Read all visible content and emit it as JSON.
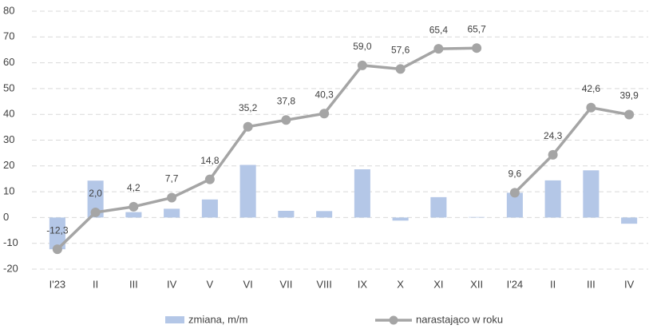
{
  "chart_data": {
    "type": "bar+line",
    "categories": [
      "I'23",
      "II",
      "III",
      "IV",
      "V",
      "VI",
      "VII",
      "VIII",
      "IX",
      "X",
      "XI",
      "XII",
      "I'24",
      "II",
      "III",
      "IV"
    ],
    "series": [
      {
        "name": "zmiana, m/m",
        "type": "bar",
        "color": "#b4c7e7",
        "values": [
          -12.3,
          14.3,
          2.1,
          3.4,
          7.0,
          20.4,
          2.6,
          2.5,
          18.7,
          -1.2,
          7.9,
          0.2,
          9.6,
          14.4,
          18.3,
          -2.4
        ]
      },
      {
        "name": "narastająco w roku",
        "type": "line",
        "color": "#a5a5a5",
        "values": [
          -12.3,
          2.0,
          4.2,
          7.7,
          14.8,
          35.2,
          37.8,
          40.3,
          59.0,
          57.6,
          65.4,
          65.7,
          9.6,
          24.3,
          42.6,
          39.9
        ],
        "value_labels": [
          "-12,3",
          "2,0",
          "4,2",
          "7,7",
          "14,8",
          "35,2",
          "37,8",
          "40,3",
          "59,0",
          "57,6",
          "65,4",
          "65,7",
          "9,6",
          "24,3",
          "42,6",
          "39,9"
        ]
      }
    ],
    "ylim": [
      -20,
      80
    ],
    "yticks": [
      -20,
      -10,
      0,
      10,
      20,
      30,
      40,
      50,
      60,
      70,
      80
    ],
    "grid": true,
    "legend": "bottom"
  }
}
